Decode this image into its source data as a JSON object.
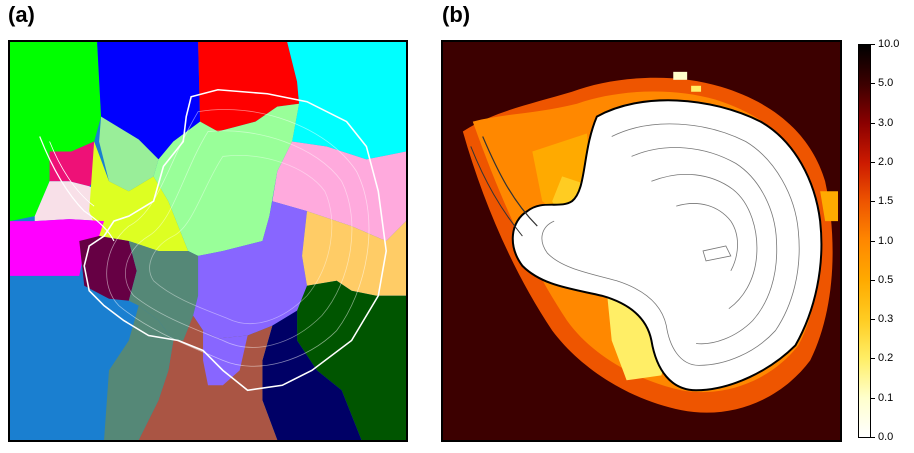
{
  "panels": {
    "a": {
      "label": "(a)"
    },
    "b": {
      "label": "(b)"
    }
  },
  "colorbar": {
    "ticks": [
      "10.0",
      "5.0",
      "3.0",
      "2.0",
      "1.5",
      "1.0",
      "0.5",
      "0.3",
      "0.2",
      "0.1",
      "0.0"
    ],
    "colors": [
      "#000000",
      "#3c0000",
      "#8b0000",
      "#cc1a00",
      "#ee5500",
      "#ff8800",
      "#ffaa00",
      "#ffcc22",
      "#ffee66",
      "#ffffcc",
      "#ffffff"
    ]
  },
  "colors": {
    "ocean_background": "#3c0000",
    "ice_interior": "#ffffff",
    "contour_line": "#555555"
  }
}
